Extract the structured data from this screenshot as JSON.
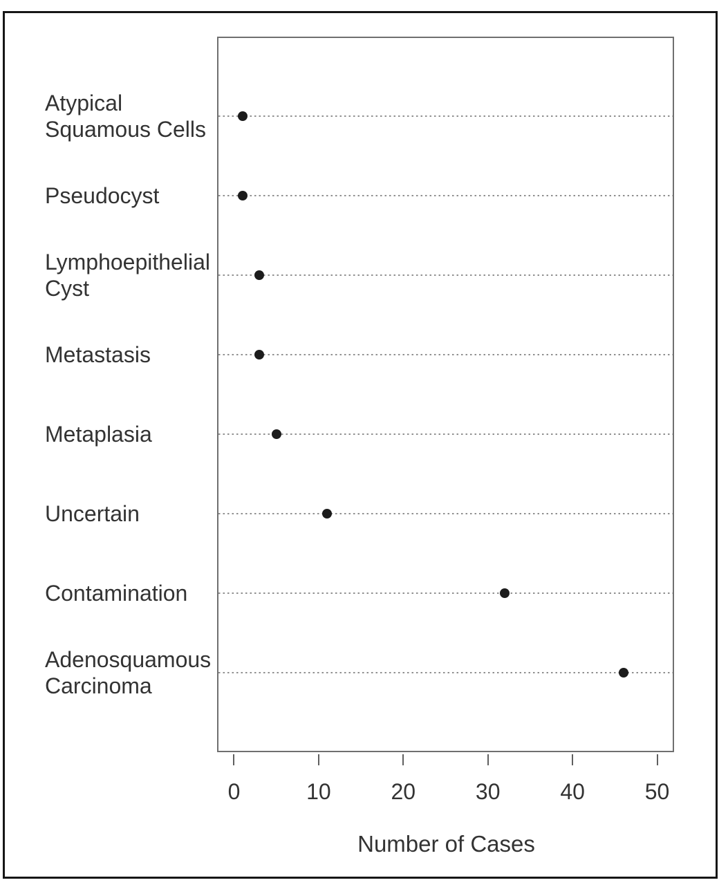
{
  "chart_data": {
    "type": "scatter",
    "variant": "cleveland-dot-plot",
    "title": "",
    "categories": [
      "Atypical\nSquamous Cells",
      "Pseudocyst",
      "Lymphoepithelial\nCyst",
      "Metastasis",
      "Metaplasia",
      "Uncertain",
      "Contamination",
      "Adenosquamous\nCarcinoma"
    ],
    "values": [
      1,
      1,
      3,
      3,
      5,
      11,
      32,
      46
    ],
    "xlabel": "Number of Cases",
    "ylabel": "",
    "x_ticks": [
      0,
      10,
      20,
      30,
      40,
      50
    ],
    "xlim": [
      -2,
      52
    ],
    "grid": "horizontal-dotted",
    "legend": "none",
    "colors": {
      "point": "#1c1c1c",
      "gridline": "#8f8f8f",
      "plot_frame": "#6f6f6f",
      "outer_border": "#161616",
      "text": "#333333"
    }
  }
}
